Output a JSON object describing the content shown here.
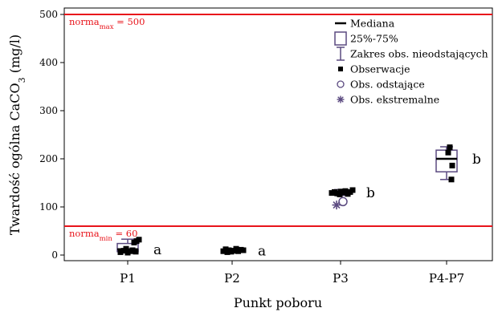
{
  "chart_data": {
    "type": "box",
    "xlabel": "Punkt poboru",
    "ylabel": {
      "main": "Twardość ogólna CaCO",
      "sub": "3",
      "unit": " (mg/l)"
    },
    "ylim": [
      0,
      500
    ],
    "yticks": [
      0,
      100,
      200,
      300,
      400,
      500
    ],
    "grid": false,
    "categories": [
      "P1",
      "P2",
      "P3",
      "P4-P7"
    ],
    "reference_lines": [
      {
        "value": 500,
        "label_main": "norma",
        "label_sub": "max",
        "label_value": " = 500",
        "color": "#e8141b"
      },
      {
        "value": 60,
        "label_main": "norma",
        "label_sub": "min",
        "label_value": " = 60",
        "color": "#e8141b"
      }
    ],
    "boxes": [
      {
        "category": "P1",
        "median": 12,
        "q1": 7,
        "q3": 24,
        "whisker_low": 5,
        "whisker_high": 33,
        "group_letter": "a",
        "observations": [
          [
            -0.18,
            6
          ],
          [
            -0.1,
            9
          ],
          [
            0.0,
            5
          ],
          [
            0.07,
            8
          ],
          [
            0.12,
            10
          ],
          [
            0.16,
            26
          ],
          [
            0.22,
            29
          ],
          [
            0.28,
            32
          ],
          [
            -0.04,
            13
          ],
          [
            0.2,
            7
          ]
        ],
        "outliers": [],
        "extremes": []
      },
      {
        "category": "P2",
        "median": 9,
        "q1": 7,
        "q3": 11,
        "whisker_low": 5,
        "whisker_high": 13,
        "group_letter": "a",
        "observations": [
          [
            -0.22,
            8
          ],
          [
            -0.16,
            12
          ],
          [
            -0.08,
            10
          ],
          [
            -0.02,
            7
          ],
          [
            0.05,
            9
          ],
          [
            0.1,
            13
          ],
          [
            0.15,
            8
          ],
          [
            0.22,
            11
          ],
          [
            0.28,
            10
          ],
          [
            -0.12,
            6
          ]
        ],
        "outliers": [],
        "extremes": []
      },
      {
        "category": "P3",
        "median": 130,
        "q1": 127,
        "q3": 133,
        "whisker_low": 124,
        "whisker_high": 136,
        "group_letter": "b",
        "observations": [
          [
            -0.22,
            129
          ],
          [
            -0.15,
            131
          ],
          [
            -0.08,
            128
          ],
          [
            0.0,
            132
          ],
          [
            0.06,
            130
          ],
          [
            0.12,
            133
          ],
          [
            0.18,
            127
          ],
          [
            0.24,
            131
          ],
          [
            0.3,
            135
          ],
          [
            -0.02,
            126
          ]
        ],
        "outliers": [
          [
            0.06,
            111
          ]
        ],
        "extremes": [
          [
            -0.1,
            104
          ]
        ]
      },
      {
        "category": "P4-P7",
        "median": 200,
        "q1": 173,
        "q3": 218,
        "whisker_low": 157,
        "whisker_high": 225,
        "group_letter": "b",
        "observations": [
          [
            0.08,
            224
          ],
          [
            0.04,
            213
          ],
          [
            0.14,
            186
          ],
          [
            0.12,
            157
          ]
        ],
        "outliers": [],
        "extremes": []
      }
    ],
    "legend": {
      "position": "top-right",
      "items": [
        {
          "symbol": "median-line",
          "label": "Mediana"
        },
        {
          "symbol": "box",
          "label": "25%-75%"
        },
        {
          "symbol": "whisker",
          "label": "Zakres obs. nieodstających"
        },
        {
          "symbol": "square-marker",
          "label": "Obserwacje"
        },
        {
          "symbol": "circle-marker",
          "label": "Obs. odstające"
        },
        {
          "symbol": "star-marker",
          "label": "Obs. ekstremalne"
        }
      ]
    },
    "colors": {
      "box": "#5b4a80",
      "reference": "#e8141b",
      "point": "#000000"
    }
  }
}
